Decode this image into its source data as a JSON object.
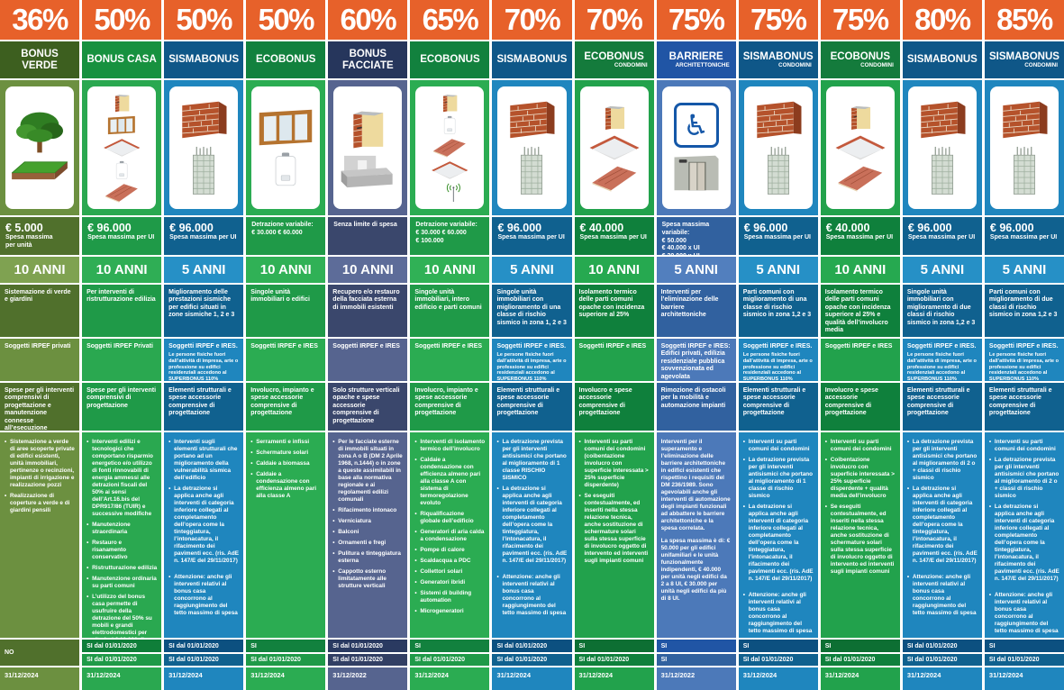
{
  "accent_orange": "#E7612A",
  "columns": [
    {
      "pct": "36%",
      "name": "BONUS VERDE",
      "subname": "",
      "icons": [
        "tree-icon",
        "grass-plot-icon"
      ],
      "spesa": [
        {
          "t": "€ 5.000",
          "s": "lg"
        },
        {
          "t": "Spesa massima",
          "s": "sm"
        },
        {
          "t": "per unità",
          "s": "sm"
        }
      ],
      "anni": "10 ANNI",
      "desc": "Sistemazione di verde e giardini",
      "soggetti_main": "Soggetti IRPEF privati",
      "soggetti_note": "",
      "spese": "Spese per gli interventi comprensivi di progettazione e manutenzione connesse all’esecuzione",
      "details_style": "bullets",
      "details": [
        "Sistemazione a verde di aree scoperte private di edifici esistenti, unità immobiliari, pertinenze o recinzioni, impianti di irrigazione e realizzazione pozzi",
        "Realizzazione di coperture a verde e di giardini pensili"
      ],
      "si1": "NO",
      "si2": null,
      "date": "31/12/2024",
      "colors": {
        "name": "#3D5F1F",
        "body": "#6C9040",
        "dark": "#50702C",
        "anni": "#7FA251",
        "si1": "#50702C",
        "si2": "#50702C",
        "date": "#6C9040"
      }
    },
    {
      "pct": "50%",
      "name": "BONUS CASA",
      "subname": "",
      "icons": [
        "insulated-wall-icon",
        "window-icon",
        "ceiling-icon",
        "boiler-icon",
        "roof-icon"
      ],
      "spesa": [
        {
          "t": "€ 96.000",
          "s": "lg"
        },
        {
          "t": "Spesa massima per UI",
          "s": "sm"
        }
      ],
      "anni": "10 ANNI",
      "desc": "Per interventi di ristrutturazione edilizia",
      "soggetti_main": "Soggetti IRPEF Privati",
      "soggetti_note": "",
      "spese": "Spese per gli interventi comprensivi di progettazione",
      "details_style": "bullets",
      "details": [
        "Interventi edilizi e tecnologici che comportano risparmio energetico e/o utilizzo di fonti rinnovabili di energia ammessi alle detrazioni fiscali del 50% ai sensi dell’Art.16.bis del DPR917/86 (TUIR) e successive modifiche",
        "Manutenzione straordinaria",
        "Restauro e risanamento conservativo",
        "Ristrutturazione edilizia",
        "Manutenzione ordinaria su parti comuni",
        "L’utilizzo del bonus casa permette di usufruire della detrazione del 50% su mobili e grandi elettrodomestici per ulteriori € 10.000 di spesa per il 2022 e di € 5.000 di spesa per il 2023 e il 2024. (Bonus Mobili)"
      ],
      "si1": "SI dal 01/01/2020",
      "si2": "SI dal 01/01/2020",
      "date": "31/12/2024",
      "colors": {
        "name": "#17913F",
        "body": "#2AA850",
        "dark": "#1F9A48",
        "anni": "#2FAE55",
        "si1": "#0F7E39",
        "si2": "#1F9A48",
        "date": "#2AA850"
      }
    },
    {
      "pct": "50%",
      "name": "SISMABONUS",
      "subname": "",
      "icons": [
        "brick-wall-icon",
        "concrete-pillar-icon"
      ],
      "spesa": [
        {
          "t": "€ 96.000",
          "s": "lg"
        },
        {
          "t": "Spesa massima per UI",
          "s": "sm"
        }
      ],
      "anni": "5 ANNI",
      "desc": "Miglioramento delle prestazioni sismiche per edifici situati in zone sismiche 1, 2 e 3",
      "soggetti_main": "Soggetti IRPEF e IRES.",
      "soggetti_note": "Le persone fisiche fuori dall’attività di impresa, arte o professione su edifici residenziali accedono al SUPERBONUS 110%",
      "spese": "Elementi strutturali e spese accessorie comprensive di progettazione",
      "details_style": "bullets",
      "details": [
        "Interventi sugli elementi strutturali che portano ad un miglioramento della vulnerabilità sismica dell’edificio",
        "La detrazione si applica anche agli interventi di categoria inferiore collegati al completamento dell’opera come la tinteggiatura, l’intonacatura, il rifacimento dei pavimenti ecc. (ris. AdE n. 147/E del 29/11/2017)",
        "Attenzione: anche gli interventi relativi al bonus casa concorrono al raggiungimento del tetto massimo di spesa"
      ],
      "si1": "SI dal 01/01/2020",
      "si2": "SI dal 01/01/2020",
      "date": "31/12/2024",
      "colors": {
        "name": "#0F5788",
        "body": "#1F86BE",
        "dark": "#10618F",
        "anni": "#2690C6",
        "si1": "#0C5080",
        "si2": "#10618F",
        "date": "#1F86BE"
      }
    },
    {
      "pct": "50%",
      "name": "ECOBONUS",
      "subname": "",
      "icons": [
        "window-icon",
        "boiler-icon"
      ],
      "spesa": [
        {
          "t": "Detrazione variabile:",
          "s": "sm"
        },
        {
          "t": "€ 30.000   € 60.000",
          "s": "sm"
        }
      ],
      "anni": "10 ANNI",
      "desc": "Singole unità immobiliari o edifici",
      "soggetti_main": "Soggetti IRPEF e IRES",
      "soggetti_note": "",
      "spese": "Involucro, impianto e spese accessorie comprensive di progettazione",
      "details_style": "bullets",
      "details": [
        "Serramenti e infissi",
        "Schermature solari",
        "Caldaie a biomassa",
        "Caldaie a condensazione con efficienza almeno pari alla classe A"
      ],
      "si1": "SI",
      "si2": "SI dal 01/01/2020",
      "date": "31/12/2024",
      "colors": {
        "name": "#12813E",
        "body": "#2BAC52",
        "dark": "#1F9A48",
        "anni": "#30B156",
        "si1": "#12813E",
        "si2": "#1F9A48",
        "date": "#2BAC52"
      }
    },
    {
      "pct": "60%",
      "name": "BONUS FACCIATE",
      "subname": "",
      "icons": [
        "insulated-wall-icon",
        "balcony-icon"
      ],
      "spesa": [
        {
          "t": "Senza limite di spesa",
          "s": "sm"
        }
      ],
      "anni": "10 ANNI",
      "desc": "Recupero e/o restauro della facciata esterna di immobili esistenti",
      "soggetti_main": "Soggetti IRPEF e IRES",
      "soggetti_note": "",
      "spese": "Solo strutture verticali opache e spese accessorie comprensive di progettazione",
      "details_style": "bullets",
      "details": [
        "Per le facciate esterne di immobili situati in zona A o B (DM 2 Aprile 1968, n.1444) o in zone a queste assimilabili in base alla normativa regionale e ai regolamenti edilizi comunali",
        "Rifacimento intonaco",
        "Verniciatura",
        "Balconi",
        "Ornamenti e fregi",
        "Pulitura e tinteggiatura esterna",
        "Cappotto esterno limitatamente alle strutture verticali"
      ],
      "si1": "SI dal 01/01/2020",
      "si2": "SI dal 01/01/2020",
      "date": "31/12/2022",
      "colors": {
        "name": "#26365C",
        "body": "#56648F",
        "dark": "#3A476C",
        "anni": "#5D6C99",
        "si1": "#2A3A61",
        "si2": "#323F64",
        "date": "#56648F"
      }
    },
    {
      "pct": "65%",
      "name": "ECOBONUS",
      "subname": "",
      "icons": [
        "insulated-wall-icon",
        "boiler-icon",
        "roof-icon",
        "ceiling-icon",
        "antenna-icon"
      ],
      "spesa": [
        {
          "t": "Detrazione variabile:",
          "s": "sm"
        },
        {
          "t": "€ 30.000   € 60.000",
          "s": "sm"
        },
        {
          "t": "€ 100.000",
          "s": "sm"
        }
      ],
      "anni": "10 ANNI",
      "desc": "Singole unità immobiliari, intero edificio e parti comuni",
      "soggetti_main": "Soggetti IRPEF e IRES",
      "soggetti_note": "",
      "spese": "Involucro, impianto e spese accessorie comprensive di progettazione",
      "details_style": "bullets",
      "details": [
        "Interventi di isolamento termico dell’involucro",
        "Caldaie a condensazione con efficienza almeno pari alla classe A con sistema di termoregolazione evoluto",
        "Riqualificazione globale dell’edificio",
        "Generatori di aria calda a condensazione",
        "Pompe di calore",
        "Scaldacqua a PDC",
        "Collettori solari",
        "Generatori ibridi",
        "Sistemi di building automation",
        "Microgeneratori"
      ],
      "si1": "SI",
      "si2": "SI dal 01/01/2020",
      "date": "31/12/2024",
      "colors": {
        "name": "#12813E",
        "body": "#2BAC52",
        "dark": "#1F9A48",
        "anni": "#30B156",
        "si1": "#12813E",
        "si2": "#1F9A48",
        "date": "#2BAC52"
      }
    },
    {
      "pct": "70%",
      "name": "SISMABONUS",
      "subname": "",
      "icons": [
        "brick-wall-icon",
        "concrete-pillar-icon"
      ],
      "spesa": [
        {
          "t": "€ 96.000",
          "s": "lg"
        },
        {
          "t": "Spesa massima per UI",
          "s": "sm"
        }
      ],
      "anni": "5 ANNI",
      "desc": "Singole unità immobiliari con miglioramento di una classe di rischio sismico in zona 1, 2 e 3",
      "soggetti_main": "Soggetti IRPEF e IRES.",
      "soggetti_note": "Le persone fisiche fuori dall’attività di impresa, arte o professione su edifici residenziali accedono al SUPERBONUS 110%",
      "spese": "Elementi strutturali e spese accessorie comprensive di progettazione",
      "details_style": "bullets",
      "details": [
        "La detrazione prevista per gli interventi antisismici che portano al miglioramento di 1 classe RISCHIO SISMICO",
        "La detrazione si applica anche agli interventi di categoria inferiore collegati al completamento dell’opera come la tinteggiatura, l’intonacatura, il rifacimento dei pavimenti ecc. (ris. AdE n. 147/E del 29/11/2017)",
        "Attenzione: anche gli interventi relativi al bonus casa concorrono al raggiungimento del tetto massimo di spesa"
      ],
      "si1": "SI dal 01/01/2020",
      "si2": "SI dal 01/01/2020",
      "date": "31/12/2024",
      "colors": {
        "name": "#0F5788",
        "body": "#1F86BE",
        "dark": "#10618F",
        "anni": "#2690C6",
        "si1": "#0C5080",
        "si2": "#10618F",
        "date": "#1F86BE"
      }
    },
    {
      "pct": "70%",
      "name": "ECOBONUS",
      "subname": "CONDOMINI",
      "icons": [
        "insulated-wall-icon",
        "ceiling-icon",
        "roof-icon"
      ],
      "spesa": [
        {
          "t": "€ 40.000",
          "s": "lg"
        },
        {
          "t": "Spesa massima per UI",
          "s": "sm"
        }
      ],
      "anni": "10 ANNI",
      "desc": "Isolamento termico delle parti comuni opache con incidenza superiore al 25%",
      "soggetti_main": "Soggetti IRPEF e IRES",
      "soggetti_note": "",
      "spese": "Involucro e spese accessorie comprensive di progettazione",
      "details_style": "bullets",
      "details": [
        "Interventi su parti comuni dei condomini (coibentazione involucro con superficie interessata > 25% superficie disperdente)",
        "Se eseguiti contestualmente, ed inseriti nella stessa relazione tecnica, anche sostituzione di schermature solari sulla stessa superficie di involucro oggetto di intervento ed interventi sugli impianti comuni"
      ],
      "si1": "SI",
      "si2": "SI dal 01/01/2020",
      "date": "31/12/2024",
      "colors": {
        "name": "#147B3C",
        "body": "#22A24C",
        "dark": "#0F803C",
        "anni": "#26A950",
        "si1": "#0D6F33",
        "si2": "#0F803C",
        "date": "#22A24C"
      }
    },
    {
      "pct": "75%",
      "name": "BARRIERE",
      "subname": "ARCHITETTONICHE",
      "icons": [
        "wheelchair-icon",
        "elevator-icon"
      ],
      "spesa": [
        {
          "t": "Spesa massima variabile:",
          "s": "sm"
        },
        {
          "t": "€ 50.000",
          "s": "sm"
        },
        {
          "t": "€ 40.000 x UI",
          "s": "sm"
        },
        {
          "t": "€ 30.000 x UI",
          "s": "sm"
        }
      ],
      "anni": "5 ANNI",
      "desc": "Interventi per l’eliminazione delle barriere architettoniche",
      "soggetti_main": "Soggetti IRPEF e IRES: Edifici privati, edilizia residenziale pubblica sovvenzionata ed agevolata",
      "soggetti_note": "",
      "spese": "Rimozione di ostacoli per la mobilità e automazione impianti",
      "details_style": "paragraphs",
      "details": [
        "Interventi per il superamento e l’eliminazione delle barriere architettoniche in edifici esistenti che rispettino i requisiti del DM 236/1989. Sono agevolabili anche gli interventi di automazione degli impianti funzionali ad abbattere le barriere architettoniche e la spesa correlata.",
        "La spesa massima è di: € 50.000 per gli edifici unifamiliari e le unità funzionalmente indipendenti, € 40.000 per unità negli edifici da 2 a 8 UI, € 30.000 per unità negli edifici da più di 8 UI."
      ],
      "si1": "SI",
      "si2": "SI",
      "date": "31/12/2022",
      "colors": {
        "name": "#2055A5",
        "body": "#4C79B9",
        "dark": "#31619F",
        "anni": "#527FBE",
        "si1": "#2055A5",
        "si2": "#31619F",
        "date": "#4C79B9"
      }
    },
    {
      "pct": "75%",
      "name": "SISMABONUS",
      "subname": "CONDOMINI",
      "icons": [
        "brick-wall-icon",
        "concrete-pillar-icon"
      ],
      "spesa": [
        {
          "t": "€ 96.000",
          "s": "lg"
        },
        {
          "t": "Spesa massima per UI",
          "s": "sm"
        }
      ],
      "anni": "5 ANNI",
      "desc": "Parti comuni con miglioramento di una classe di rischio sismico in zona 1,2 e 3",
      "soggetti_main": "Soggetti IRPEF e IRES.",
      "soggetti_note": "Le persone fisiche fuori dall’attività di impresa, arte o professione su edifici residenziali accedono al SUPERBONUS 110%",
      "spese": "Elementi strutturali e spese accessorie comprensive di progettazione",
      "details_style": "bullets",
      "details": [
        "Interventi su parti comuni dei condomini",
        "La detrazione prevista per gli interventi antisismici che portano al miglioramento di 1 classe di rischio sismico",
        "La detrazione si applica anche agli interventi di categoria inferiore collegati al completamento dell’opera come la tinteggiatura, l’intonacatura, il rifacimento dei pavimenti ecc. (ris. AdE n. 147/E del 29/11/2017)",
        "Attenzione: anche gli interventi relativi al bonus casa concorrono al raggiungimento del tetto massimo di spesa"
      ],
      "si1": "SI",
      "si2": "SI dal 01/01/2020",
      "date": "31/12/2024",
      "colors": {
        "name": "#0F5788",
        "body": "#1F86BE",
        "dark": "#10618F",
        "anni": "#2690C6",
        "si1": "#0C5080",
        "si2": "#10618F",
        "date": "#1F86BE"
      }
    },
    {
      "pct": "75%",
      "name": "ECOBONUS",
      "subname": "CONDOMINI",
      "icons": [
        "insulated-wall-icon",
        "ceiling-icon",
        "roof-icon"
      ],
      "spesa": [
        {
          "t": "€ 40.000",
          "s": "lg"
        },
        {
          "t": "Spesa massima per UI",
          "s": "sm"
        }
      ],
      "anni": "10 ANNI",
      "desc": "Isolamento termico delle parti comuni opache con incidenza superiore al 25% e qualità dell’involucro media",
      "soggetti_main": "Soggetti IRPEF e IRES",
      "soggetti_note": "",
      "spese": "Involucro e spese accessorie comprensive di progettazione",
      "details_style": "bullets",
      "details": [
        "Interventi su parti comuni dei condomini",
        "Coibentazione involucro con superficie interessata > 25% superficie disperdente + qualità media dell’involucro",
        "Se eseguiti contestualmente, ed inseriti nella stessa relazione tecnica, anche sostituzione di schermature solari sulla stessa superficie di involucro oggetto di intervento ed interventi sugli impianti comuni"
      ],
      "si1": "SI",
      "si2": "SI dal 01/01/2020",
      "date": "31/12/2024",
      "colors": {
        "name": "#147B3C",
        "body": "#22A24C",
        "dark": "#0F803C",
        "anni": "#26A950",
        "si1": "#0D6F33",
        "si2": "#0F803C",
        "date": "#22A24C"
      }
    },
    {
      "pct": "80%",
      "name": "SISMABONUS",
      "subname": "",
      "icons": [
        "brick-wall-icon",
        "concrete-pillar-icon"
      ],
      "spesa": [
        {
          "t": "€ 96.000",
          "s": "lg"
        },
        {
          "t": "Spesa massima per UI",
          "s": "sm"
        }
      ],
      "anni": "5 ANNI",
      "desc": "Singole unità immobiliari con miglioramento di due classi di rischio sismico in zona 1,2 e 3",
      "soggetti_main": "Soggetti IRPEF e IRES.",
      "soggetti_note": "Le persone fisiche fuori dall’attività di impresa, arte o professione su edifici residenziali accedono al SUPERBONUS 110%",
      "spese": "Elementi strutturali e spese accessorie comprensive di progettazione",
      "details_style": "bullets",
      "details": [
        "La detrazione prevista per gli interventi antisismici che portano al miglioramento di 2 o + classi di rischio sismico",
        "La detrazione si applica anche agli interventi di categoria inferiore collegati al completamento dell’opera come la tinteggiatura, l’intonacatura, il rifacimento dei pavimenti ecc. (ris. AdE n. 147/E del 29/11/2017)",
        "Attenzione: anche gli interventi relativi al bonus casa concorrono al raggiungimento del tetto massimo di spesa"
      ],
      "si1": "SI dal 01/01/2020",
      "si2": "SI dal 01/01/2020",
      "date": "31/12/2024",
      "colors": {
        "name": "#0F5788",
        "body": "#1F86BE",
        "dark": "#10618F",
        "anni": "#2690C6",
        "si1": "#0C5080",
        "si2": "#10618F",
        "date": "#1F86BE"
      }
    },
    {
      "pct": "85%",
      "name": "SISMABONUS",
      "subname": "CONDOMINI",
      "icons": [
        "brick-wall-icon",
        "concrete-pillar-icon"
      ],
      "spesa": [
        {
          "t": "€ 96.000",
          "s": "lg"
        },
        {
          "t": "Spesa massima per UI",
          "s": "sm"
        }
      ],
      "anni": "5 ANNI",
      "desc": "Parti comuni con miglioramento di due classi di rischio sismico in zona 1,2 e 3",
      "soggetti_main": "Soggetti IRPEF e IRES.",
      "soggetti_note": "Le persone fisiche fuori dall’attività di impresa, arte o professione su edifici residenziali accedono al SUPERBONUS 110%",
      "spese": "Elementi strutturali e spese accessorie comprensive di progettazione",
      "details_style": "bullets",
      "details": [
        "Interventi su parti comuni dei condomini",
        "La detrazione prevista per gli interventi antisismici che portano al miglioramento di 2 o + classi di rischio sismico",
        "La detrazione si applica anche agli interventi di categoria inferiore collegati al completamento dell’opera come la tinteggiatura, l’intonacatura, il rifacimento dei pavimenti ecc. (ris. AdE n. 147/E del 29/11/2017)",
        "Attenzione: anche gli interventi relativi al bonus casa concorrono al raggiungimento del tetto massimo di spesa"
      ],
      "si1": "SI",
      "si2": "SI dal 01/01/2020",
      "date": "31/12/2024",
      "colors": {
        "name": "#0F5788",
        "body": "#1F86BE",
        "dark": "#10618F",
        "anni": "#2690C6",
        "si1": "#0C5080",
        "si2": "#10618F",
        "date": "#1F86BE"
      }
    }
  ]
}
